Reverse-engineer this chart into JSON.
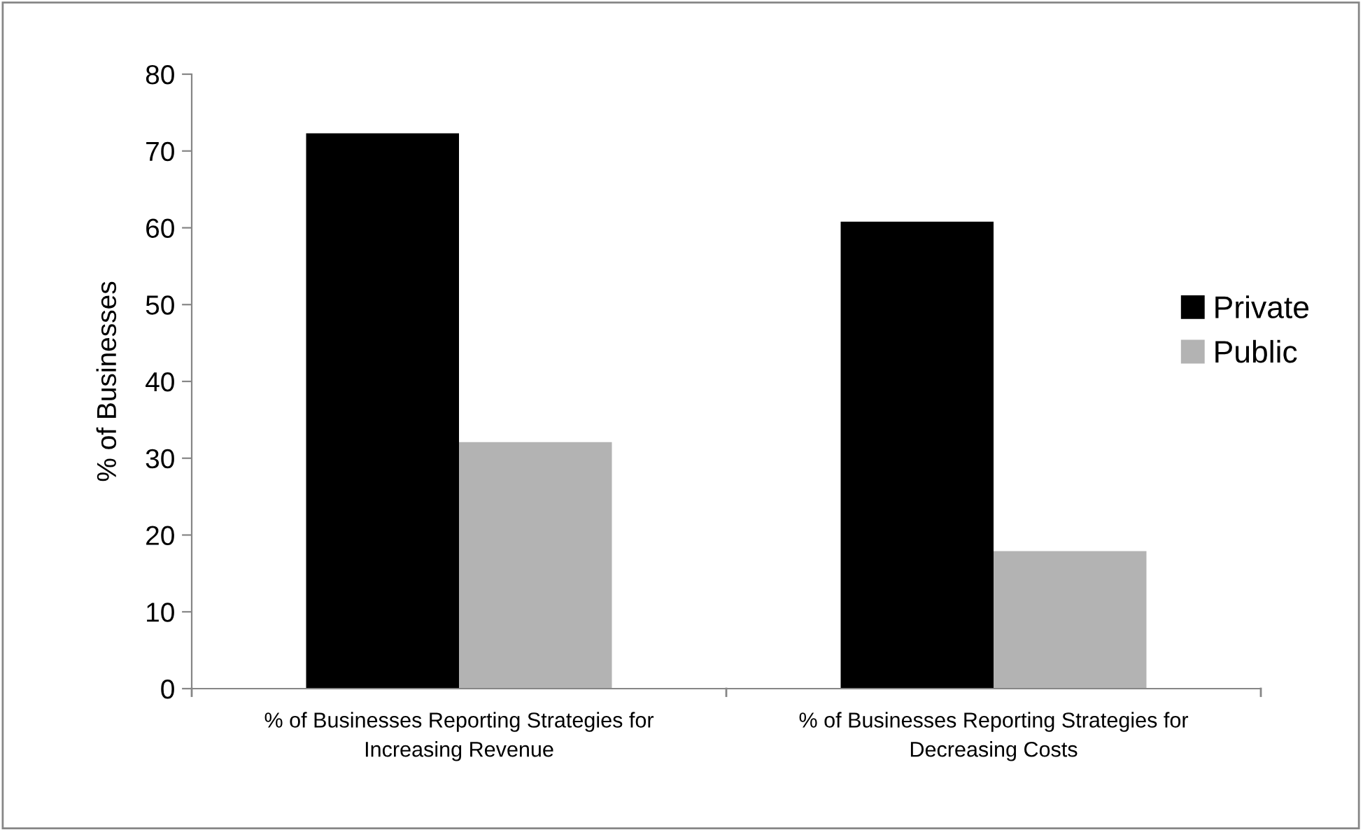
{
  "chart_data": {
    "type": "bar",
    "ylabel": "% of Businesses",
    "categories": [
      "% of Businesses Reporting Strategies for Increasing Revenue",
      "% of Businesses Reporting Strategies for Decreasing Costs"
    ],
    "series": [
      {
        "name": "Private",
        "color": "#000000",
        "values": [
          72.3,
          60.8
        ]
      },
      {
        "name": "Public",
        "color": "#b3b3b3",
        "values": [
          32.1,
          17.9
        ]
      }
    ],
    "ylim": [
      0,
      80
    ],
    "yticks": [
      0,
      10,
      20,
      30,
      40,
      50,
      60,
      70,
      80
    ],
    "grid": false,
    "legend": "right"
  }
}
